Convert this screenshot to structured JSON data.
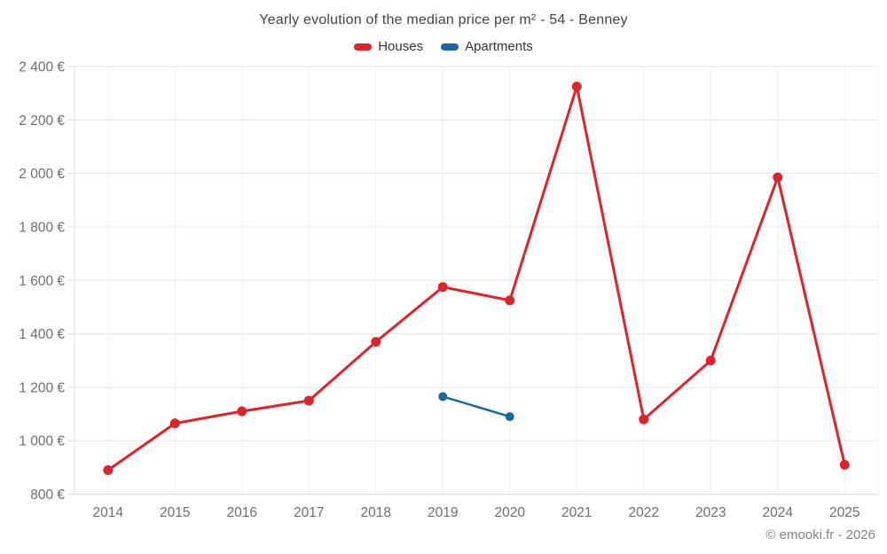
{
  "title": "Yearly evolution of the median price per m² - 54 - Benney",
  "footer": "© emooki.fr - 2026",
  "legend": [
    {
      "label": "Houses",
      "color": "#df2429"
    },
    {
      "label": "Apartments",
      "color": "#17699e"
    }
  ],
  "colors": {
    "grid_horizontal": "#e6e6e6",
    "grid_vertical": "#f0f0f0",
    "axis_border": "#dcdcdc",
    "houses": "#df2429",
    "apartments": "#17699e",
    "tick_text": "#6e6e6e",
    "title_text": "#444444",
    "footer_text": "#848484"
  },
  "chart_data": {
    "type": "line",
    "title": "Yearly evolution of the median price per m² - 54 - Benney",
    "xlabel": "",
    "ylabel": "",
    "categories": [
      2014,
      2015,
      2016,
      2017,
      2018,
      2019,
      2020,
      2021,
      2022,
      2023,
      2024,
      2025
    ],
    "series": [
      {
        "name": "Houses",
        "color": "#df2429",
        "marker_radius": 5.5,
        "line_width": 3,
        "values": [
          890,
          1065,
          1110,
          1150,
          1370,
          1575,
          1525,
          2325,
          1080,
          1300,
          1985,
          910
        ]
      },
      {
        "name": "Apartments",
        "color": "#17699e",
        "marker_radius": 5,
        "line_width": 2.5,
        "values": [
          null,
          null,
          null,
          null,
          null,
          1165,
          1090,
          null,
          null,
          null,
          null,
          null
        ]
      }
    ],
    "ylim": [
      800,
      2400
    ],
    "ytick_values": [
      800,
      1000,
      1200,
      1400,
      1600,
      1800,
      2000,
      2200,
      2400
    ],
    "ytick_labels": [
      "800 €",
      "1 000 €",
      "1 200 €",
      "1 400 €",
      "1 600 €",
      "1 800 €",
      "2 000 €",
      "2 200 €",
      "2 400 €"
    ],
    "grid": true,
    "legend_position": "top",
    "unit": "€"
  }
}
